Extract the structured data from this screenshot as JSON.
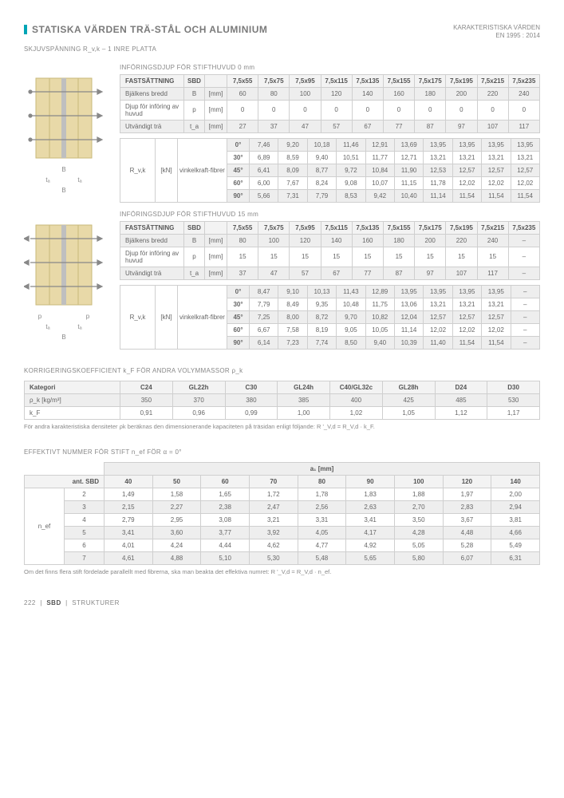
{
  "header": {
    "title": "STATISKA VÄRDEN TRÄ-STÅL OCH ALUMINIUM",
    "right1": "KARAKTERISTISKA VÄRDEN",
    "right2": "EN 1995 : 2014",
    "subtitle": "SKJUVSPÄNNING R_v,k – 1 INRE PLATTA"
  },
  "sec1": {
    "caption": "INFÖRINGSDJUP FÖR STIFTHUVUD 0 mm",
    "fast": "FASTSÄTTNING",
    "sbd": "SBD",
    "sizes": [
      "7,5x55",
      "7,5x75",
      "7,5x95",
      "7,5x115",
      "7,5x135",
      "7,5x155",
      "7,5x175",
      "7,5x195",
      "7,5x215",
      "7,5x235"
    ],
    "r1": {
      "lbl": "Bjälkens bredd",
      "sym": "B",
      "unit": "[mm]",
      "vals": [
        "60",
        "80",
        "100",
        "120",
        "140",
        "160",
        "180",
        "200",
        "220",
        "240"
      ]
    },
    "r2": {
      "lbl": "Djup för införing av huvud",
      "sym": "p",
      "unit": "[mm]",
      "vals": [
        "0",
        "0",
        "0",
        "0",
        "0",
        "0",
        "0",
        "0",
        "0",
        "0"
      ]
    },
    "r3": {
      "lbl": "Utvändigt trä",
      "sym": "t_a",
      "unit": "[mm]",
      "vals": [
        "27",
        "37",
        "47",
        "57",
        "67",
        "77",
        "87",
        "97",
        "107",
        "117"
      ]
    },
    "rvk": {
      "lbl": "R_v,k",
      "unit": "[kN]",
      "sub": "vinkelkraft-fibrer"
    },
    "angles": [
      {
        "a": "0°",
        "vals": [
          "7,46",
          "9,20",
          "10,18",
          "11,46",
          "12,91",
          "13,69",
          "13,95",
          "13,95",
          "13,95",
          "13,95"
        ]
      },
      {
        "a": "30°",
        "vals": [
          "6,89",
          "8,59",
          "9,40",
          "10,51",
          "11,77",
          "12,71",
          "13,21",
          "13,21",
          "13,21",
          "13,21"
        ]
      },
      {
        "a": "45°",
        "vals": [
          "6,41",
          "8,09",
          "8,77",
          "9,72",
          "10,84",
          "11,90",
          "12,53",
          "12,57",
          "12,57",
          "12,57"
        ]
      },
      {
        "a": "60°",
        "vals": [
          "6,00",
          "7,67",
          "8,24",
          "9,08",
          "10,07",
          "11,15",
          "11,78",
          "12,02",
          "12,02",
          "12,02"
        ]
      },
      {
        "a": "90°",
        "vals": [
          "5,66",
          "7,31",
          "7,79",
          "8,53",
          "9,42",
          "10,40",
          "11,14",
          "11,54",
          "11,54",
          "11,54"
        ]
      }
    ]
  },
  "sec2": {
    "caption": "INFÖRINGSDJUP FÖR STIFTHUVUD 15 mm",
    "fast": "FASTSÄTTNING",
    "sbd": "SBD",
    "sizes": [
      "7,5x55",
      "7,5x75",
      "7,5x95",
      "7,5x115",
      "7,5x135",
      "7,5x155",
      "7,5x175",
      "7,5x195",
      "7,5x215",
      "7,5x235"
    ],
    "r1": {
      "lbl": "Bjälkens bredd",
      "sym": "B",
      "unit": "[mm]",
      "vals": [
        "80",
        "100",
        "120",
        "140",
        "160",
        "180",
        "200",
        "220",
        "240",
        "–"
      ]
    },
    "r2": {
      "lbl": "Djup för införing av huvud",
      "sym": "p",
      "unit": "[mm]",
      "vals": [
        "15",
        "15",
        "15",
        "15",
        "15",
        "15",
        "15",
        "15",
        "15",
        "–"
      ]
    },
    "r3": {
      "lbl": "Utvändigt trä",
      "sym": "t_a",
      "unit": "[mm]",
      "vals": [
        "37",
        "47",
        "57",
        "67",
        "77",
        "87",
        "97",
        "107",
        "117",
        "–"
      ]
    },
    "rvk": {
      "lbl": "R_v,k",
      "unit": "[kN]",
      "sub": "vinkelkraft-fibrer"
    },
    "angles": [
      {
        "a": "0°",
        "vals": [
          "8,47",
          "9,10",
          "10,13",
          "11,43",
          "12,89",
          "13,95",
          "13,95",
          "13,95",
          "13,95",
          "–"
        ]
      },
      {
        "a": "30°",
        "vals": [
          "7,79",
          "8,49",
          "9,35",
          "10,48",
          "11,75",
          "13,06",
          "13,21",
          "13,21",
          "13,21",
          "–"
        ]
      },
      {
        "a": "45°",
        "vals": [
          "7,25",
          "8,00",
          "8,72",
          "9,70",
          "10,82",
          "12,04",
          "12,57",
          "12,57",
          "12,57",
          "–"
        ]
      },
      {
        "a": "60°",
        "vals": [
          "6,67",
          "7,58",
          "8,19",
          "9,05",
          "10,05",
          "11,14",
          "12,02",
          "12,02",
          "12,02",
          "–"
        ]
      },
      {
        "a": "90°",
        "vals": [
          "6,14",
          "7,23",
          "7,74",
          "8,50",
          "9,40",
          "10,39",
          "11,40",
          "11,54",
          "11,54",
          "–"
        ]
      }
    ]
  },
  "kf": {
    "title": "KORRIGERINGSKOEFFICIENT k_F FÖR ANDRA VOLYMMASSOR ρ_k",
    "head": [
      "Kategori",
      "C24",
      "GL22h",
      "C30",
      "GL24h",
      "C40/GL32c",
      "GL28h",
      "D24",
      "D30"
    ],
    "r1": {
      "lbl": "ρ_k [kg/m³]",
      "vals": [
        "350",
        "370",
        "380",
        "385",
        "400",
        "425",
        "485",
        "530"
      ]
    },
    "r2": {
      "lbl": "k_F",
      "vals": [
        "0,91",
        "0,96",
        "0,99",
        "1,00",
        "1,02",
        "1,05",
        "1,12",
        "1,17"
      ]
    },
    "note": "För andra karakteristiska densiteter ρk beräknas den dimensionerande kapaciteten på träsidan enligt följande: R '_V,d = R_V,d · k_F."
  },
  "nef": {
    "title": "EFFEKTIVT NUMMER FÖR STIFT n_ef FÖR α = 0°",
    "a1": "a₁ [mm]",
    "cols": [
      "40",
      "50",
      "60",
      "70",
      "80",
      "90",
      "100",
      "120",
      "140"
    ],
    "antlbl": "ant. SBD",
    "neflbl": "n_ef",
    "rows": [
      {
        "n": "2",
        "vals": [
          "1,49",
          "1,58",
          "1,65",
          "1,72",
          "1,78",
          "1,83",
          "1,88",
          "1,97",
          "2,00"
        ]
      },
      {
        "n": "3",
        "vals": [
          "2,15",
          "2,27",
          "2,38",
          "2,47",
          "2,56",
          "2,63",
          "2,70",
          "2,83",
          "2,94"
        ]
      },
      {
        "n": "4",
        "vals": [
          "2,79",
          "2,95",
          "3,08",
          "3,21",
          "3,31",
          "3,41",
          "3,50",
          "3,67",
          "3,81"
        ]
      },
      {
        "n": "5",
        "vals": [
          "3,41",
          "3,60",
          "3,77",
          "3,92",
          "4,05",
          "4,17",
          "4,28",
          "4,48",
          "4,66"
        ]
      },
      {
        "n": "6",
        "vals": [
          "4,01",
          "4,24",
          "4,44",
          "4,62",
          "4,77",
          "4,92",
          "5,05",
          "5,28",
          "5,49"
        ]
      },
      {
        "n": "7",
        "vals": [
          "4,61",
          "4,88",
          "5,10",
          "5,30",
          "5,48",
          "5,65",
          "5,80",
          "6,07",
          "6,31"
        ]
      }
    ],
    "note": "Om det finns flera stift fördelade parallellt med fibrerna, ska man beakta det effektiva numret: R '_V,d = R_V,d · n_ef."
  },
  "footer": {
    "page": "222",
    "mid": "SBD",
    "right": "STRUKTURER"
  },
  "colors": {
    "wood": "#e8d9a8",
    "woodline": "#c9b97a",
    "steel": "#bfbfbf"
  }
}
